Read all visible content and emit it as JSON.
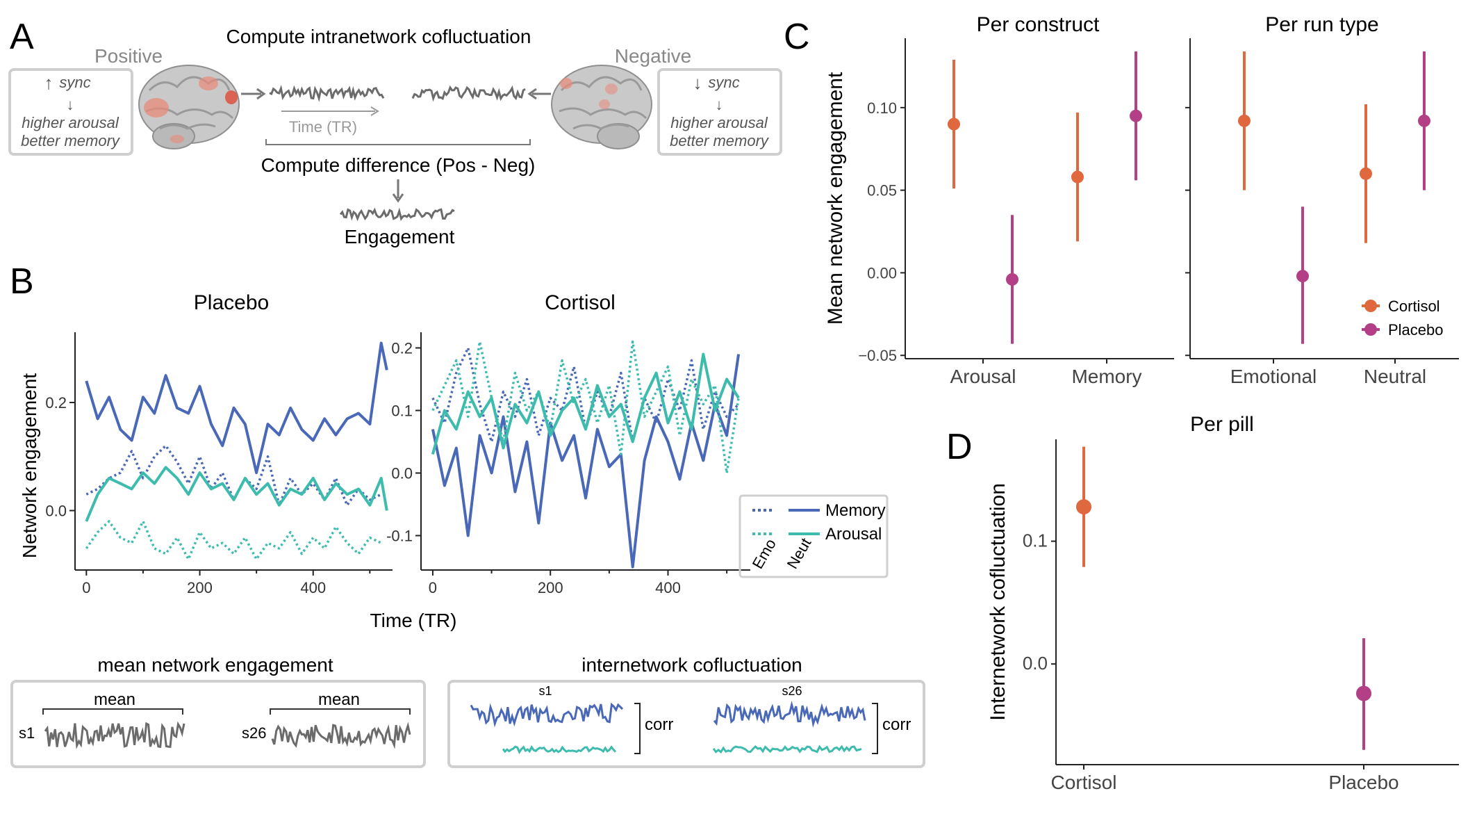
{
  "colors": {
    "memory": "#4a68b8",
    "arousal": "#3dbcae",
    "cortisol": "#e0683f",
    "placebo": "#b33f86",
    "gray": "#6b6b6b",
    "box_border": "#cfcfcf"
  },
  "panel_a": {
    "letter": "A",
    "title": "Compute intranetwork cofluctuation",
    "positive_label": "Positive",
    "negative_label": "Negative",
    "pos_box": {
      "arrow": "↑",
      "sync": "sync",
      "arrow2": "↓",
      "line1": "higher arousal",
      "line2": "better memory"
    },
    "neg_box": {
      "arrow": "↓",
      "sync": "sync",
      "arrow2": "↓",
      "line1": "higher arousal",
      "line2": "better memory"
    },
    "time_label": "Time (TR)",
    "difference_label": "Compute difference (Pos - Neg)",
    "engagement_label": "Engagement",
    "brain_icon": "brain-icon"
  },
  "panel_b": {
    "letter": "B",
    "xlabel": "Time (TR)",
    "ylabel": "Network engagement",
    "legend": {
      "memory": "Memory",
      "arousal": "Arousal",
      "emo": "Emo",
      "neut": "Neut"
    },
    "mean_box": {
      "title": "mean network engagement",
      "mean_label": "mean",
      "s1": "s1",
      "s26": "s26"
    },
    "corr_box": {
      "title": "internetwork cofluctuation",
      "s1": "s1",
      "s26": "s26",
      "corr_label": "corr"
    }
  },
  "panel_c": {
    "letter": "C"
  },
  "panel_d": {
    "letter": "D"
  },
  "chart_data": [
    {
      "id": "B-placebo",
      "type": "line",
      "title": "Placebo",
      "xlabel": "Time (TR)",
      "ylabel": "Network engagement",
      "xlim": [
        -20,
        540
      ],
      "ylim": [
        -0.11,
        0.33
      ],
      "xticks": [
        0,
        200,
        400
      ],
      "yticks": [
        0.0,
        0.2
      ],
      "ytick_labels": [
        "0.0",
        "0.2"
      ],
      "series": [
        {
          "name": "Memory",
          "condition": "Emo",
          "style": "dotted",
          "color": "memory",
          "x": [
            0,
            20,
            40,
            60,
            80,
            100,
            120,
            140,
            160,
            180,
            200,
            220,
            240,
            260,
            280,
            300,
            320,
            340,
            360,
            380,
            400,
            420,
            440,
            460,
            480,
            500,
            520
          ],
          "y": [
            0.03,
            0.04,
            0.06,
            0.07,
            0.11,
            0.06,
            0.1,
            0.12,
            0.09,
            0.05,
            0.1,
            0.04,
            0.07,
            0.02,
            0.06,
            0.04,
            0.1,
            0.01,
            0.06,
            0.03,
            0.05,
            0.02,
            0.06,
            0.01,
            0.04,
            0.02,
            0.03
          ]
        },
        {
          "name": "Memory",
          "condition": "Neut",
          "style": "solid",
          "color": "memory",
          "x": [
            0,
            20,
            40,
            60,
            80,
            100,
            120,
            140,
            160,
            180,
            200,
            220,
            240,
            260,
            280,
            300,
            320,
            340,
            360,
            380,
            400,
            420,
            440,
            460,
            480,
            500,
            520,
            530
          ],
          "y": [
            0.24,
            0.17,
            0.21,
            0.15,
            0.13,
            0.21,
            0.18,
            0.25,
            0.19,
            0.18,
            0.23,
            0.16,
            0.12,
            0.19,
            0.16,
            0.07,
            0.16,
            0.14,
            0.19,
            0.15,
            0.13,
            0.17,
            0.14,
            0.17,
            0.18,
            0.16,
            0.31,
            0.26
          ]
        },
        {
          "name": "Arousal",
          "condition": "Emo",
          "style": "dotted",
          "color": "arousal",
          "x": [
            0,
            20,
            40,
            60,
            80,
            100,
            120,
            140,
            160,
            180,
            200,
            220,
            240,
            260,
            280,
            300,
            320,
            340,
            360,
            380,
            400,
            420,
            440,
            460,
            480,
            500,
            520
          ],
          "y": [
            -0.07,
            -0.04,
            -0.02,
            -0.05,
            -0.06,
            -0.02,
            -0.07,
            -0.08,
            -0.05,
            -0.09,
            -0.04,
            -0.07,
            -0.06,
            -0.08,
            -0.05,
            -0.09,
            -0.06,
            -0.07,
            -0.04,
            -0.08,
            -0.05,
            -0.07,
            -0.03,
            -0.06,
            -0.08,
            -0.05,
            -0.06
          ]
        },
        {
          "name": "Arousal",
          "condition": "Neut",
          "style": "solid",
          "color": "arousal",
          "x": [
            0,
            20,
            40,
            60,
            80,
            100,
            120,
            140,
            160,
            180,
            200,
            220,
            240,
            260,
            280,
            300,
            320,
            340,
            360,
            380,
            400,
            420,
            440,
            460,
            480,
            500,
            520,
            530
          ],
          "y": [
            -0.02,
            0.03,
            0.06,
            0.05,
            0.04,
            0.07,
            0.05,
            0.08,
            0.06,
            0.03,
            0.07,
            0.04,
            0.05,
            0.02,
            0.06,
            0.03,
            0.05,
            0.01,
            0.04,
            0.03,
            0.06,
            0.02,
            0.05,
            0.03,
            0.04,
            0.01,
            0.06,
            0.0
          ]
        }
      ]
    },
    {
      "id": "B-cortisol",
      "type": "line",
      "title": "Cortisol",
      "xlim": [
        -20,
        540
      ],
      "ylim": [
        -0.155,
        0.225
      ],
      "xticks": [
        0,
        200,
        400
      ],
      "yticks": [
        -0.1,
        0.0,
        0.1,
        0.2
      ],
      "ytick_labels": [
        "-0.1",
        "0.0",
        "0.1",
        "0.2"
      ],
      "series": [
        {
          "name": "Memory",
          "condition": "Emo",
          "style": "dotted",
          "color": "memory",
          "x": [
            0,
            20,
            40,
            60,
            80,
            100,
            120,
            140,
            160,
            180,
            200,
            220,
            240,
            260,
            280,
            300,
            320,
            340,
            360,
            380,
            400,
            420,
            440,
            460,
            480,
            500,
            520
          ],
          "y": [
            0.12,
            0.08,
            0.16,
            0.2,
            0.11,
            0.05,
            0.13,
            0.09,
            0.15,
            0.06,
            0.12,
            0.1,
            0.17,
            0.07,
            0.13,
            0.09,
            0.16,
            0.05,
            0.12,
            0.08,
            0.15,
            0.1,
            0.18,
            0.07,
            0.13,
            0.09,
            0.11
          ]
        },
        {
          "name": "Memory",
          "condition": "Neut",
          "style": "solid",
          "color": "memory",
          "x": [
            0,
            20,
            40,
            60,
            80,
            100,
            120,
            140,
            160,
            180,
            200,
            220,
            240,
            260,
            280,
            300,
            320,
            340,
            360,
            380,
            400,
            420,
            440,
            460,
            480,
            500,
            520
          ],
          "y": [
            0.07,
            -0.02,
            0.04,
            -0.1,
            0.06,
            0.0,
            0.09,
            -0.03,
            0.05,
            -0.08,
            0.08,
            0.02,
            0.06,
            -0.04,
            0.07,
            0.01,
            0.03,
            -0.15,
            0.02,
            0.09,
            0.05,
            -0.01,
            0.08,
            0.02,
            0.11,
            0.06,
            0.19
          ]
        },
        {
          "name": "Arousal",
          "condition": "Emo",
          "style": "dotted",
          "color": "arousal",
          "x": [
            0,
            20,
            40,
            60,
            80,
            100,
            120,
            140,
            160,
            180,
            200,
            220,
            240,
            260,
            280,
            300,
            320,
            340,
            360,
            380,
            400,
            420,
            440,
            460,
            480,
            500,
            520
          ],
          "y": [
            0.1,
            0.14,
            0.18,
            0.09,
            0.21,
            0.12,
            0.05,
            0.16,
            0.1,
            0.13,
            0.07,
            0.18,
            0.11,
            0.15,
            0.08,
            0.14,
            0.03,
            0.21,
            0.09,
            0.13,
            0.17,
            0.06,
            0.15,
            0.11,
            0.14,
            0.0,
            0.12
          ]
        },
        {
          "name": "Arousal",
          "condition": "Neut",
          "style": "solid",
          "color": "arousal",
          "x": [
            0,
            20,
            40,
            60,
            80,
            100,
            120,
            140,
            160,
            180,
            200,
            220,
            240,
            260,
            280,
            300,
            320,
            340,
            360,
            380,
            400,
            420,
            440,
            460,
            480,
            500,
            520
          ],
          "y": [
            0.03,
            0.1,
            0.07,
            0.13,
            0.09,
            0.12,
            0.04,
            0.11,
            0.08,
            0.13,
            0.06,
            0.1,
            0.12,
            0.07,
            0.14,
            0.09,
            0.11,
            0.05,
            0.12,
            0.16,
            0.08,
            0.13,
            0.07,
            0.19,
            0.1,
            0.15,
            0.12
          ]
        }
      ]
    },
    {
      "id": "C-construct",
      "type": "scatter",
      "title": "Per construct",
      "ylabel": "Mean network engagement",
      "ylim": [
        -0.052,
        0.142
      ],
      "yticks": [
        -0.05,
        0.0,
        0.05,
        0.1
      ],
      "ytick_labels": [
        "−0.05",
        "0.00",
        "0.05",
        "0.10"
      ],
      "categories": [
        "Arousal",
        "Memory"
      ],
      "series": [
        {
          "name": "Cortisol",
          "color": "cortisol",
          "values": [
            0.09,
            0.058
          ],
          "lower": [
            0.051,
            0.019
          ],
          "upper": [
            0.129,
            0.097
          ]
        },
        {
          "name": "Placebo",
          "color": "placebo",
          "values": [
            -0.004,
            0.095
          ],
          "lower": [
            -0.043,
            0.056
          ],
          "upper": [
            0.035,
            0.134
          ]
        }
      ]
    },
    {
      "id": "C-runtype",
      "type": "scatter",
      "title": "Per run type",
      "ylim": [
        -0.052,
        0.142
      ],
      "categories": [
        "Emotional",
        "Neutral"
      ],
      "legend": [
        "Cortisol",
        "Placebo"
      ],
      "series": [
        {
          "name": "Cortisol",
          "color": "cortisol",
          "values": [
            0.092,
            0.06
          ],
          "lower": [
            0.05,
            0.018
          ],
          "upper": [
            0.134,
            0.102
          ]
        },
        {
          "name": "Placebo",
          "color": "placebo",
          "values": [
            -0.002,
            0.092
          ],
          "lower": [
            -0.043,
            0.05
          ],
          "upper": [
            0.04,
            0.134
          ]
        }
      ]
    },
    {
      "id": "D-pill",
      "type": "scatter",
      "title": "Per pill",
      "ylabel": "Internetwork cofluctuation",
      "ylim": [
        -0.082,
        0.183
      ],
      "yticks": [
        0.0,
        0.1
      ],
      "ytick_labels": [
        "0.0",
        "0.1"
      ],
      "categories": [
        "Cortisol",
        "Placebo"
      ],
      "series": [
        {
          "name": "Cortisol",
          "color": "cortisol",
          "values": [
            0.128
          ],
          "lower": [
            0.079
          ],
          "upper": [
            0.177
          ]
        },
        {
          "name": "Placebo",
          "color": "placebo",
          "values": [
            -0.024
          ],
          "lower": [
            -0.07
          ],
          "upper": [
            0.021
          ]
        }
      ]
    }
  ]
}
